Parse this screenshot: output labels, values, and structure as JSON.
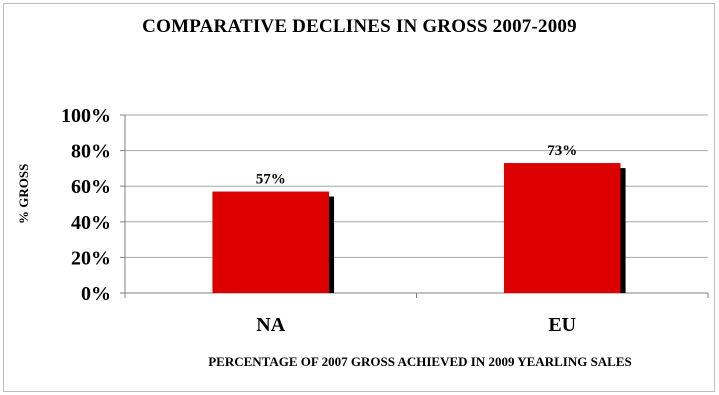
{
  "chart_data": {
    "type": "bar",
    "title": "COMPARATIVE DECLINES IN GROSS 2007-2009",
    "xlabel": "PERCENTAGE OF 2007 GROSS ACHIEVED IN 2009 YEARLING SALES",
    "ylabel": "% GROSS",
    "categories": [
      "NA",
      "EU"
    ],
    "values": [
      57,
      73
    ],
    "data_labels": [
      "57%",
      "73%"
    ],
    "yticks": [
      "0%",
      "20%",
      "40%",
      "60%",
      "80%",
      "100%"
    ],
    "ylim": [
      0,
      100
    ],
    "grid": true,
    "legend": "none",
    "bar_color": "#dd0000",
    "shadow_color": "#000000"
  }
}
